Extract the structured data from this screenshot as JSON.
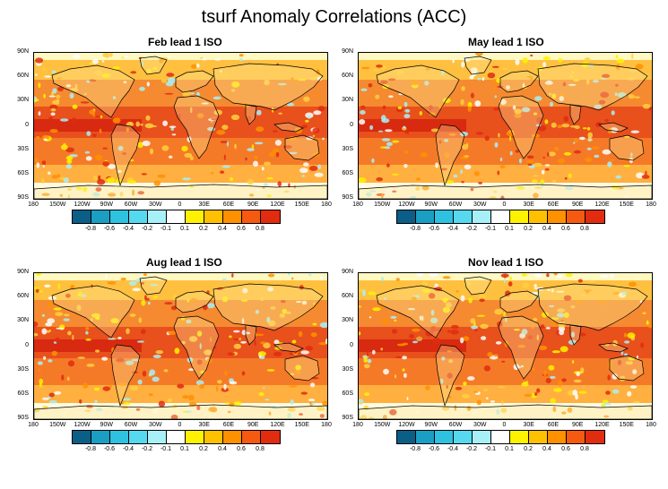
{
  "title": "tsurf Anomaly Correlations (ACC)",
  "panels": [
    {
      "title": "Feb lead 1  ISO"
    },
    {
      "title": "May lead 1 ISO"
    },
    {
      "title": "Aug lead 1 ISO"
    },
    {
      "title": "Nov lead 1 ISO"
    }
  ],
  "lat_labels": [
    "90N",
    "60N",
    "30N",
    "0",
    "30S",
    "60S",
    "90S"
  ],
  "lon_labels": [
    "180",
    "150W",
    "120W",
    "90W",
    "60W",
    "30W",
    "0",
    "30E",
    "60E",
    "90E",
    "120E",
    "150E",
    "180"
  ],
  "colorbar": {
    "labels": [
      "-0.8",
      "-0.6",
      "-0.4",
      "-0.2",
      "-0.1",
      "0.1",
      "0.2",
      "0.4",
      "0.6",
      "0.8"
    ],
    "colors": [
      "#0b5e86",
      "#1a9ec4",
      "#2fc1e0",
      "#56d9ef",
      "#a8f0f8",
      "#ffffff",
      "#fff200",
      "#ffc000",
      "#ff9000",
      "#f55a10",
      "#e12c10"
    ]
  }
}
